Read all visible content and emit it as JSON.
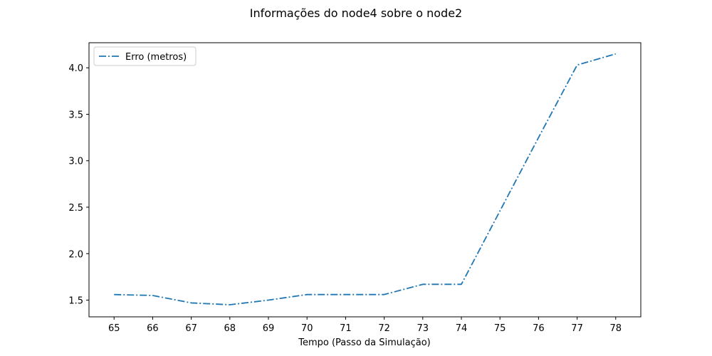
{
  "chart_data": {
    "type": "line",
    "title": "Informações do node4 sobre o node2",
    "xlabel": "Tempo (Passo da Simulação)",
    "ylabel": "",
    "x": [
      65,
      66,
      67,
      68,
      69,
      70,
      71,
      72,
      73,
      74,
      75,
      76,
      77,
      78
    ],
    "xlim": [
      64.35,
      78.65
    ],
    "ylim": [
      1.32,
      4.27
    ],
    "xticks": [
      65,
      66,
      67,
      68,
      69,
      70,
      71,
      72,
      73,
      74,
      75,
      76,
      77,
      78
    ],
    "yticks": [
      1.5,
      2.0,
      2.5,
      3.0,
      3.5,
      4.0
    ],
    "ytick_labels": [
      "1.5",
      "2.0",
      "2.5",
      "3.0",
      "3.5",
      "4.0"
    ],
    "grid": false,
    "legend_position": "top-left",
    "series": [
      {
        "name": "Erro (metros)",
        "color": "#1f77b4",
        "line_style": "dash-dot",
        "values": [
          1.56,
          1.55,
          1.47,
          1.45,
          1.5,
          1.56,
          1.56,
          1.56,
          1.67,
          1.67,
          2.46,
          3.25,
          4.03,
          4.15
        ]
      }
    ]
  }
}
